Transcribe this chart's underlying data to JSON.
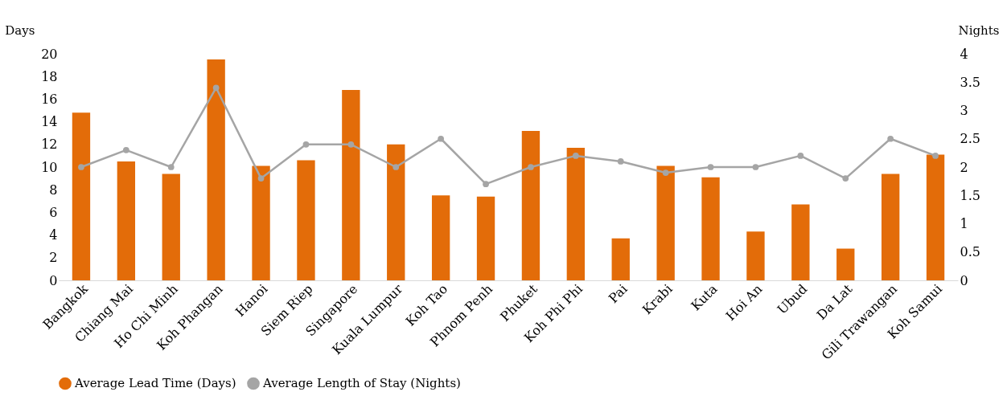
{
  "chart_data": {
    "type": "bar",
    "ylabel": "Days",
    "y2label": "Nights",
    "categories": [
      "Bangkok",
      "Chiang Mai",
      "Ho Chi Minh",
      "Koh Phangan",
      "Hanoi",
      "Siem Riep",
      "Singapore",
      "Kuala Lumpur",
      "Koh Tao",
      "Phnom Penh",
      "Phuket",
      "Koh Phi Phi",
      "Pai",
      "Krabi",
      "Kuta",
      "Hoi An",
      "Ubud",
      "Da Lat",
      "Gili Trawangan",
      "Koh Samui"
    ],
    "series": [
      {
        "name": "Average Lead Time (Days)",
        "color": "#e36c09",
        "values": [
          14.8,
          10.5,
          9.4,
          19.5,
          10.1,
          10.6,
          16.8,
          12.0,
          7.5,
          7.4,
          13.2,
          11.7,
          3.7,
          10.1,
          9.1,
          4.3,
          6.7,
          2.8,
          9.4,
          11.1
        ]
      },
      {
        "name": "Average Length of Stay (Nights)",
        "type": "line",
        "axis": "y2",
        "marker": "circle",
        "color": "#a5a5a5",
        "values": [
          2.0,
          2.3,
          2.0,
          3.4,
          1.8,
          2.4,
          2.4,
          2.0,
          2.5,
          1.7,
          2.0,
          2.2,
          2.1,
          1.9,
          2.0,
          2.0,
          2.2,
          1.8,
          2.5,
          2.2
        ]
      }
    ],
    "ylim": [
      0,
      20
    ],
    "yticks": [
      0,
      2,
      4,
      6,
      8,
      10,
      12,
      14,
      16,
      18,
      20
    ],
    "y2lim": [
      0,
      4
    ],
    "y2ticks": [
      0,
      0.5,
      1,
      1.5,
      2,
      2.5,
      3,
      3.5,
      4
    ],
    "grid": false,
    "legend": "bottom"
  }
}
